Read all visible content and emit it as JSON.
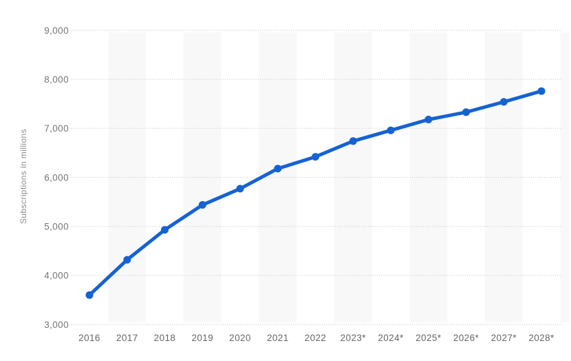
{
  "chart_data": {
    "type": "line",
    "title": "",
    "xlabel": "",
    "ylabel": "Subscriptions in millions",
    "categories": [
      "2016",
      "2017",
      "2018",
      "2019",
      "2020",
      "2021",
      "2022",
      "2023*",
      "2024*",
      "2025*",
      "2026*",
      "2027*",
      "2028*"
    ],
    "series": [
      {
        "name": "Subscriptions in millions",
        "values": [
          3600,
          4320,
          4930,
          5440,
          5770,
          6180,
          6420,
          6740,
          6960,
          7180,
          7330,
          7540,
          7760
        ]
      }
    ],
    "ylim": [
      3000,
      9000
    ],
    "yticks": [
      {
        "value": 9000,
        "label": "9,000"
      },
      {
        "value": 8000,
        "label": "8,000"
      },
      {
        "value": 7000,
        "label": "7,000"
      },
      {
        "value": 6000,
        "label": "6,000"
      },
      {
        "value": 5000,
        "label": "5,000"
      },
      {
        "value": 4000,
        "label": "4,000"
      },
      {
        "value": 3000,
        "label": "3,000"
      }
    ],
    "grid": "horizontal-dotted",
    "legend": "none",
    "plot_bands": "alternating light vertical bands centered on odd years",
    "colors": {
      "line": "#1562d3",
      "point": "#1562d3",
      "band": "#f8f8f8",
      "gridline": "#c9c9c9",
      "y_tick_label": "#757575",
      "x_tick_label": "#666666",
      "axis_title": "#8c8c8c",
      "background": "#ffffff"
    }
  }
}
